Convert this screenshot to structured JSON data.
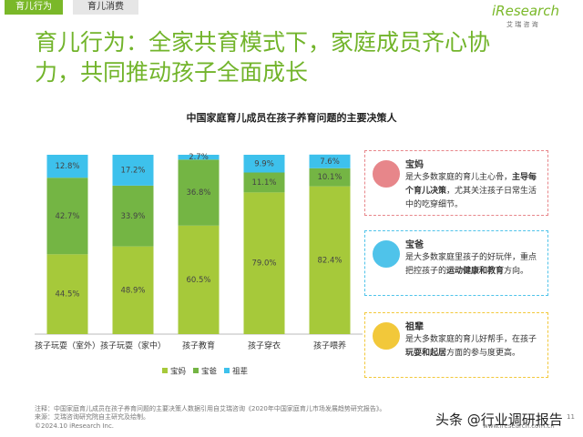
{
  "header": {
    "tabs": [
      "育儿行为",
      "育儿消费"
    ],
    "logo": "iResearch",
    "logo_sub": "艾 瑞 咨 询",
    "title": "育儿行为：全家共育模式下，家庭成员齐心协力，共同推动孩子全面成长"
  },
  "chart_data": {
    "type": "stacked_bar",
    "title": "中国家庭育儿成员在孩子养育问题的主要决策人",
    "categories": [
      "孩子玩耍（室外）",
      "孩子玩耍（家中）",
      "孩子教育",
      "孩子穿衣",
      "孩子喂养"
    ],
    "series": [
      {
        "name": "宝妈",
        "color": "#a6c93a",
        "values": [
          44.5,
          48.9,
          60.5,
          79.0,
          82.4
        ],
        "value_labels": [
          "44.5%",
          "48.9%",
          "60.5%",
          "79.0%",
          "82.4%"
        ]
      },
      {
        "name": "宝爸",
        "color": "#74b544",
        "values": [
          42.7,
          33.9,
          36.8,
          11.1,
          10.1
        ],
        "value_labels": [
          "42.7%",
          "33.9%",
          "36.8%",
          "11.1%",
          "10.1%"
        ]
      },
      {
        "name": "祖辈",
        "color": "#3dc1ec",
        "values": [
          12.8,
          17.2,
          2.7,
          9.9,
          7.6
        ],
        "value_labels": [
          "12.8%",
          "17.2%",
          "2.7%",
          "9.9%",
          "7.6%"
        ]
      }
    ],
    "ylim": [
      0,
      100
    ],
    "legend": "bottom"
  },
  "cards": [
    {
      "name": "宝妈",
      "border": "#e7868a",
      "runs": [
        {
          "text": "是大多数家庭的育儿主心骨，",
          "bold": false
        },
        {
          "text": "主导每个育儿决策",
          "bold": true
        },
        {
          "text": "，尤其关注孩子日常生活中的吃穿细节。",
          "bold": false
        }
      ]
    },
    {
      "name": "宝爸",
      "border": "#4fc3ea",
      "runs": [
        {
          "text": "是大多数家庭里孩子的好玩伴，重点把控孩子的",
          "bold": false
        },
        {
          "text": "运动健康和教育",
          "bold": true
        },
        {
          "text": "方向。",
          "bold": false
        }
      ]
    },
    {
      "name": "祖辈",
      "border": "#f2c83a",
      "runs": [
        {
          "text": "是大多数家庭的育儿好帮手，在孩子",
          "bold": false
        },
        {
          "text": "玩耍和起居",
          "bold": true
        },
        {
          "text": "方面的参与度更高。",
          "bold": false
        }
      ]
    }
  ],
  "footer": {
    "note": "注释：中国家庭育儿成员在孩子养育问题的主要决策人数据引用自艾瑞咨询《2020年中国家庭育儿市场发展趋势研究报告》。",
    "source": "来源：艾瑞咨询研究院自主研究及绘制。",
    "copyright": "©2024.10 iResearch Inc.",
    "url": "www.iresearch.com.cn",
    "page": "11",
    "watermark": "头条 @行业调研报告"
  }
}
